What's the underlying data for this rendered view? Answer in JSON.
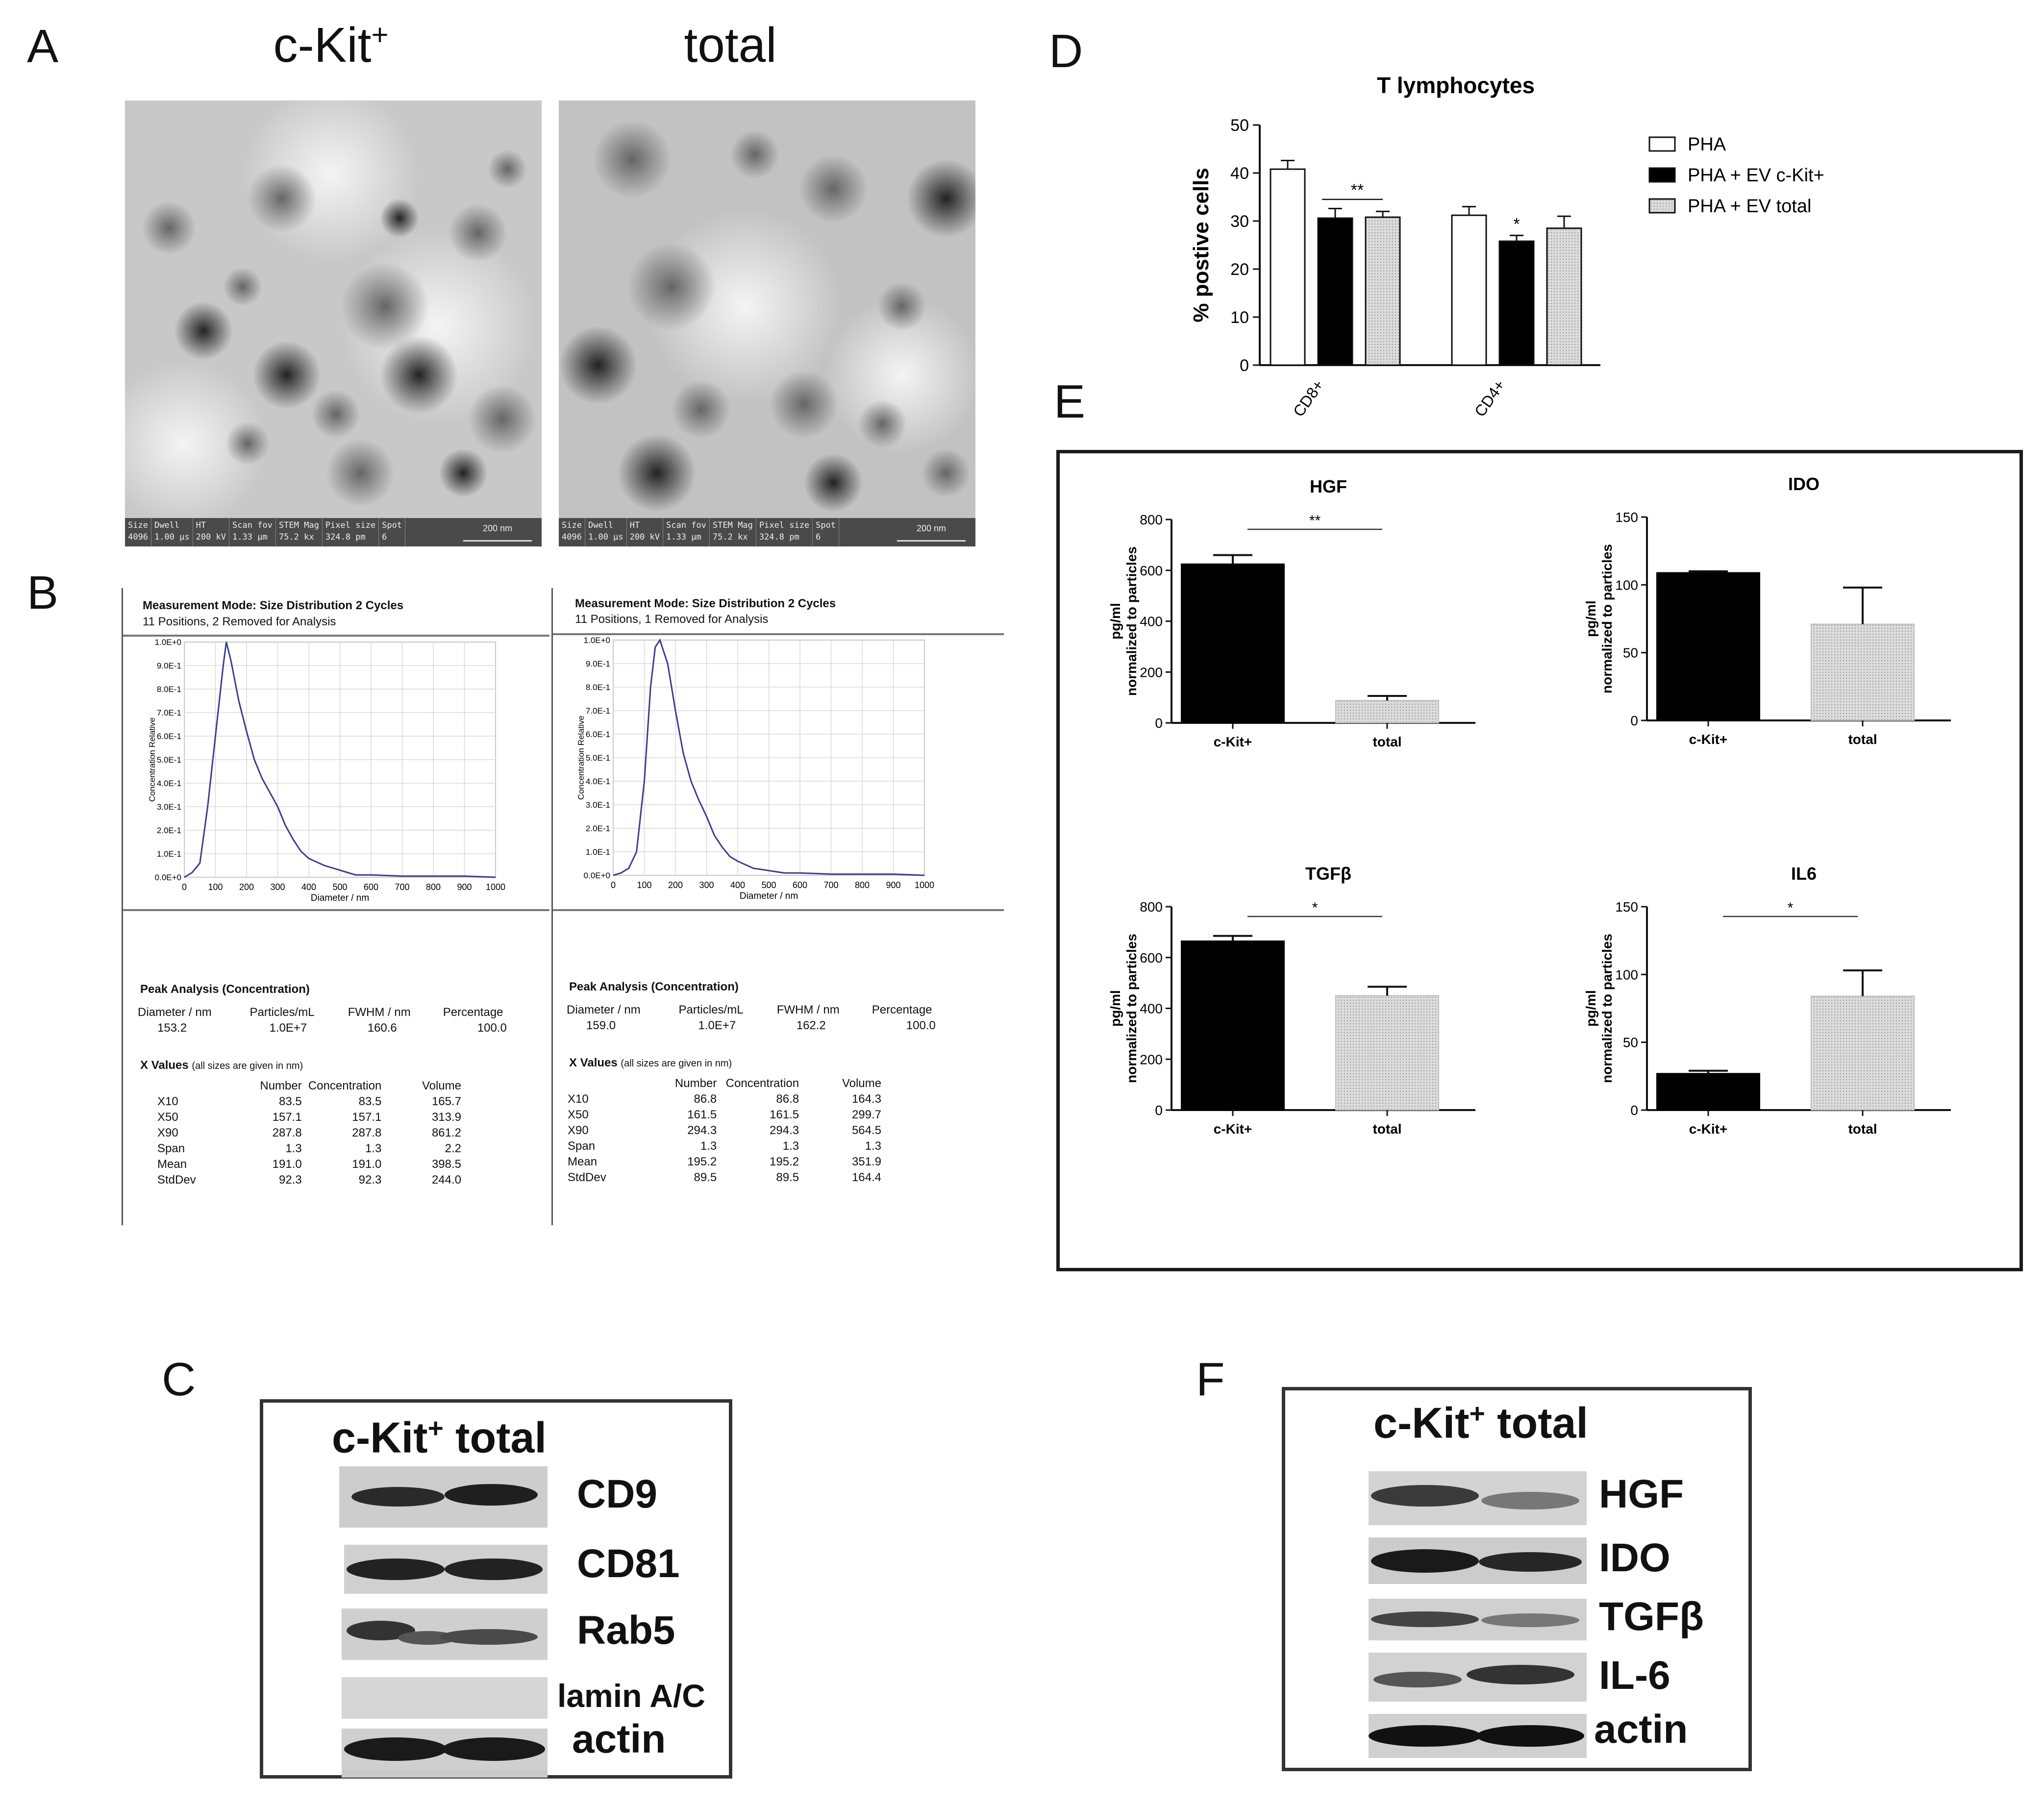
{
  "panel_letters": {
    "A": "A",
    "B": "B",
    "C": "C",
    "D": "D",
    "E": "E",
    "F": "F"
  },
  "panelA": {
    "titles": [
      "c-Kit+",
      "total"
    ],
    "footer_headers": [
      "Size",
      "Dwell",
      "HT",
      "Scan fov",
      "STEM Mag",
      "Pixel size",
      "Spot"
    ],
    "footer_values": [
      "4096",
      "1.00 µs",
      "200 kV",
      "1.33 µm",
      "75.2 kx",
      "324.8 pm",
      "6"
    ],
    "scalebar": "200 nm"
  },
  "panelB": [
    {
      "mode": "Measurement Mode: Size Distribution 2 Cycles",
      "positions": "11 Positions, 2 Removed for Analysis",
      "ylabel": "Concentration Relative",
      "xlabel": "Diameter / nm",
      "peak_title": "Peak Analysis (Concentration)",
      "peak_headers": [
        "Diameter / nm",
        "Particles/mL",
        "FWHM / nm",
        "Percentage"
      ],
      "peak_values": [
        "153.2",
        "1.0E+7",
        "160.6",
        "100.0"
      ],
      "xvalues_title": "X Values",
      "xvalues_note": "(all sizes are given in nm)",
      "table_headers": [
        "",
        "Number",
        "Concentration",
        "Volume"
      ],
      "table_rows": [
        [
          "X10",
          "83.5",
          "83.5",
          "165.7"
        ],
        [
          "X50",
          "157.1",
          "157.1",
          "313.9"
        ],
        [
          "X90",
          "287.8",
          "287.8",
          "861.2"
        ],
        [
          "Span",
          "1.3",
          "1.3",
          "2.2"
        ],
        [
          "Mean",
          "191.0",
          "191.0",
          "398.5"
        ],
        [
          "StdDev",
          "92.3",
          "92.3",
          "244.0"
        ]
      ]
    },
    {
      "mode": "Measurement Mode: Size Distribution 2 Cycles",
      "positions": "11 Positions, 1 Removed for Analysis",
      "ylabel": "Concentration Relative",
      "xlabel": "Diameter / nm",
      "peak_title": "Peak Analysis (Concentration)",
      "peak_headers": [
        "Diameter / nm",
        "Particles/mL",
        "FWHM / nm",
        "Percentage"
      ],
      "peak_values": [
        "159.0",
        "1.0E+7",
        "162.2",
        "100.0"
      ],
      "xvalues_title": "X Values",
      "xvalues_note": "(all sizes are given in nm)",
      "table_headers": [
        "",
        "Number",
        "Concentration",
        "Volume"
      ],
      "table_rows": [
        [
          "X10",
          "86.8",
          "86.8",
          "164.3"
        ],
        [
          "X50",
          "161.5",
          "161.5",
          "299.7"
        ],
        [
          "X90",
          "294.3",
          "294.3",
          "564.5"
        ],
        [
          "Span",
          "1.3",
          "1.3",
          "1.3"
        ],
        [
          "Mean",
          "195.2",
          "195.2",
          "351.9"
        ],
        [
          "StdDev",
          "89.5",
          "89.5",
          "164.4"
        ]
      ]
    }
  ],
  "panelC": {
    "header": "c-Kit+ total",
    "labels": [
      "CD9",
      "CD81",
      "Rab5",
      "lamin A/C",
      "actin"
    ]
  },
  "panelF": {
    "header": "c-Kit+ total",
    "labels": [
      "HGF",
      "IDO",
      "TGFβ",
      "IL-6",
      "actin"
    ]
  },
  "chart_data": [
    {
      "id": "B-left",
      "type": "line",
      "x": [
        0,
        25,
        50,
        75,
        100,
        110,
        125,
        135,
        150,
        175,
        200,
        225,
        250,
        275,
        300,
        325,
        350,
        375,
        400,
        450,
        500,
        550,
        600,
        700,
        800,
        900,
        1000
      ],
      "y": [
        0.0,
        0.02,
        0.06,
        0.3,
        0.6,
        0.72,
        0.9,
        1.0,
        0.92,
        0.75,
        0.62,
        0.5,
        0.42,
        0.36,
        0.3,
        0.22,
        0.16,
        0.11,
        0.08,
        0.05,
        0.03,
        0.01,
        0.01,
        0.005,
        0.005,
        0.005,
        0.0
      ],
      "xlim": [
        0,
        1000
      ],
      "ylim": [
        0,
        1.0
      ],
      "xticks": [
        "0",
        "100",
        "200",
        "300",
        "400",
        "500",
        "600",
        "700",
        "800",
        "900",
        "1000"
      ],
      "yticks": [
        "0.0E+0",
        "1.0E-1",
        "2.0E-1",
        "3.0E-1",
        "4.0E-1",
        "5.0E-1",
        "6.0E-1",
        "7.0E-1",
        "8.0E-1",
        "9.0E-1",
        "1.0E+0"
      ],
      "xlabel": "Diameter / nm",
      "ylabel": "Concentration Relative",
      "grid": true
    },
    {
      "id": "B-right",
      "type": "line",
      "x": [
        0,
        25,
        50,
        75,
        100,
        120,
        135,
        150,
        175,
        200,
        225,
        250,
        275,
        300,
        325,
        350,
        375,
        400,
        450,
        500,
        550,
        600,
        700,
        800,
        900,
        1000
      ],
      "y": [
        0.0,
        0.01,
        0.03,
        0.1,
        0.4,
        0.8,
        0.97,
        1.0,
        0.9,
        0.7,
        0.52,
        0.4,
        0.32,
        0.25,
        0.17,
        0.12,
        0.08,
        0.06,
        0.03,
        0.02,
        0.01,
        0.01,
        0.005,
        0.005,
        0.005,
        0.0
      ],
      "xlim": [
        0,
        1000
      ],
      "ylim": [
        0,
        1.0
      ],
      "xticks": [
        "0",
        "100",
        "200",
        "300",
        "400",
        "500",
        "600",
        "700",
        "800",
        "900",
        "1000"
      ],
      "yticks": [
        "0.0E+0",
        "1.0E-1",
        "2.0E-1",
        "3.0E-1",
        "4.0E-1",
        "5.0E-1",
        "6.0E-1",
        "7.0E-1",
        "8.0E-1",
        "9.0E-1",
        "1.0E+0"
      ],
      "xlabel": "Diameter / nm",
      "ylabel": "Concentration Relative",
      "grid": true
    },
    {
      "id": "D",
      "type": "bar",
      "title": "T lymphocytes",
      "ylabel": "% postive cells",
      "categories": [
        "CD8+",
        "CD4+"
      ],
      "series": [
        {
          "name": "PHA",
          "values": [
            40.8,
            31.2
          ],
          "errors": [
            1.8,
            1.8
          ],
          "color": "#ffffff"
        },
        {
          "name": "PHA + EV c-Kit+",
          "values": [
            30.6,
            25.8
          ],
          "errors": [
            2.0,
            1.2
          ],
          "color": "#000000"
        },
        {
          "name": "PHA + EV total",
          "values": [
            30.8,
            28.5
          ],
          "errors": [
            1.2,
            2.5
          ],
          "color": "#d4d4d4"
        }
      ],
      "ylim": [
        0,
        50
      ],
      "yticks": [
        "0",
        "10",
        "20",
        "30",
        "40",
        "50"
      ],
      "annotations": [
        "**",
        "*"
      ]
    },
    {
      "id": "E-HGF",
      "type": "bar",
      "title": "HGF",
      "ylabel": "pg/ml normalized to particles",
      "categories": [
        "c-Kit+",
        "total"
      ],
      "values": [
        625,
        88
      ],
      "errors": [
        35,
        18
      ],
      "ylim": [
        0,
        800
      ],
      "yticks": [
        "0",
        "200",
        "400",
        "600",
        "800"
      ],
      "significance": "**"
    },
    {
      "id": "E-IDO",
      "type": "bar",
      "title": "IDO",
      "ylabel": "pg/ml normalized to particles",
      "categories": [
        "c-Kit+",
        "total"
      ],
      "values": [
        109,
        71
      ],
      "errors": [
        1,
        27
      ],
      "ylim": [
        0,
        150
      ],
      "yticks": [
        "0",
        "50",
        "100",
        "150"
      ],
      "significance": ""
    },
    {
      "id": "E-TGFb",
      "type": "bar",
      "title": "TGFβ",
      "ylabel": "pg/ml normalized to particles",
      "categories": [
        "c-Kit+",
        "total"
      ],
      "values": [
        665,
        450
      ],
      "errors": [
        20,
        35
      ],
      "ylim": [
        0,
        800
      ],
      "yticks": [
        "0",
        "200",
        "400",
        "600",
        "800"
      ],
      "significance": "*"
    },
    {
      "id": "E-IL6",
      "type": "bar",
      "title": "IL6",
      "ylabel": "pg/ml normalized to particles",
      "categories": [
        "c-Kit+",
        "total"
      ],
      "values": [
        27,
        84
      ],
      "errors": [
        2,
        19
      ],
      "ylim": [
        0,
        150
      ],
      "yticks": [
        "0",
        "50",
        "100",
        "150"
      ],
      "significance": "*"
    }
  ]
}
